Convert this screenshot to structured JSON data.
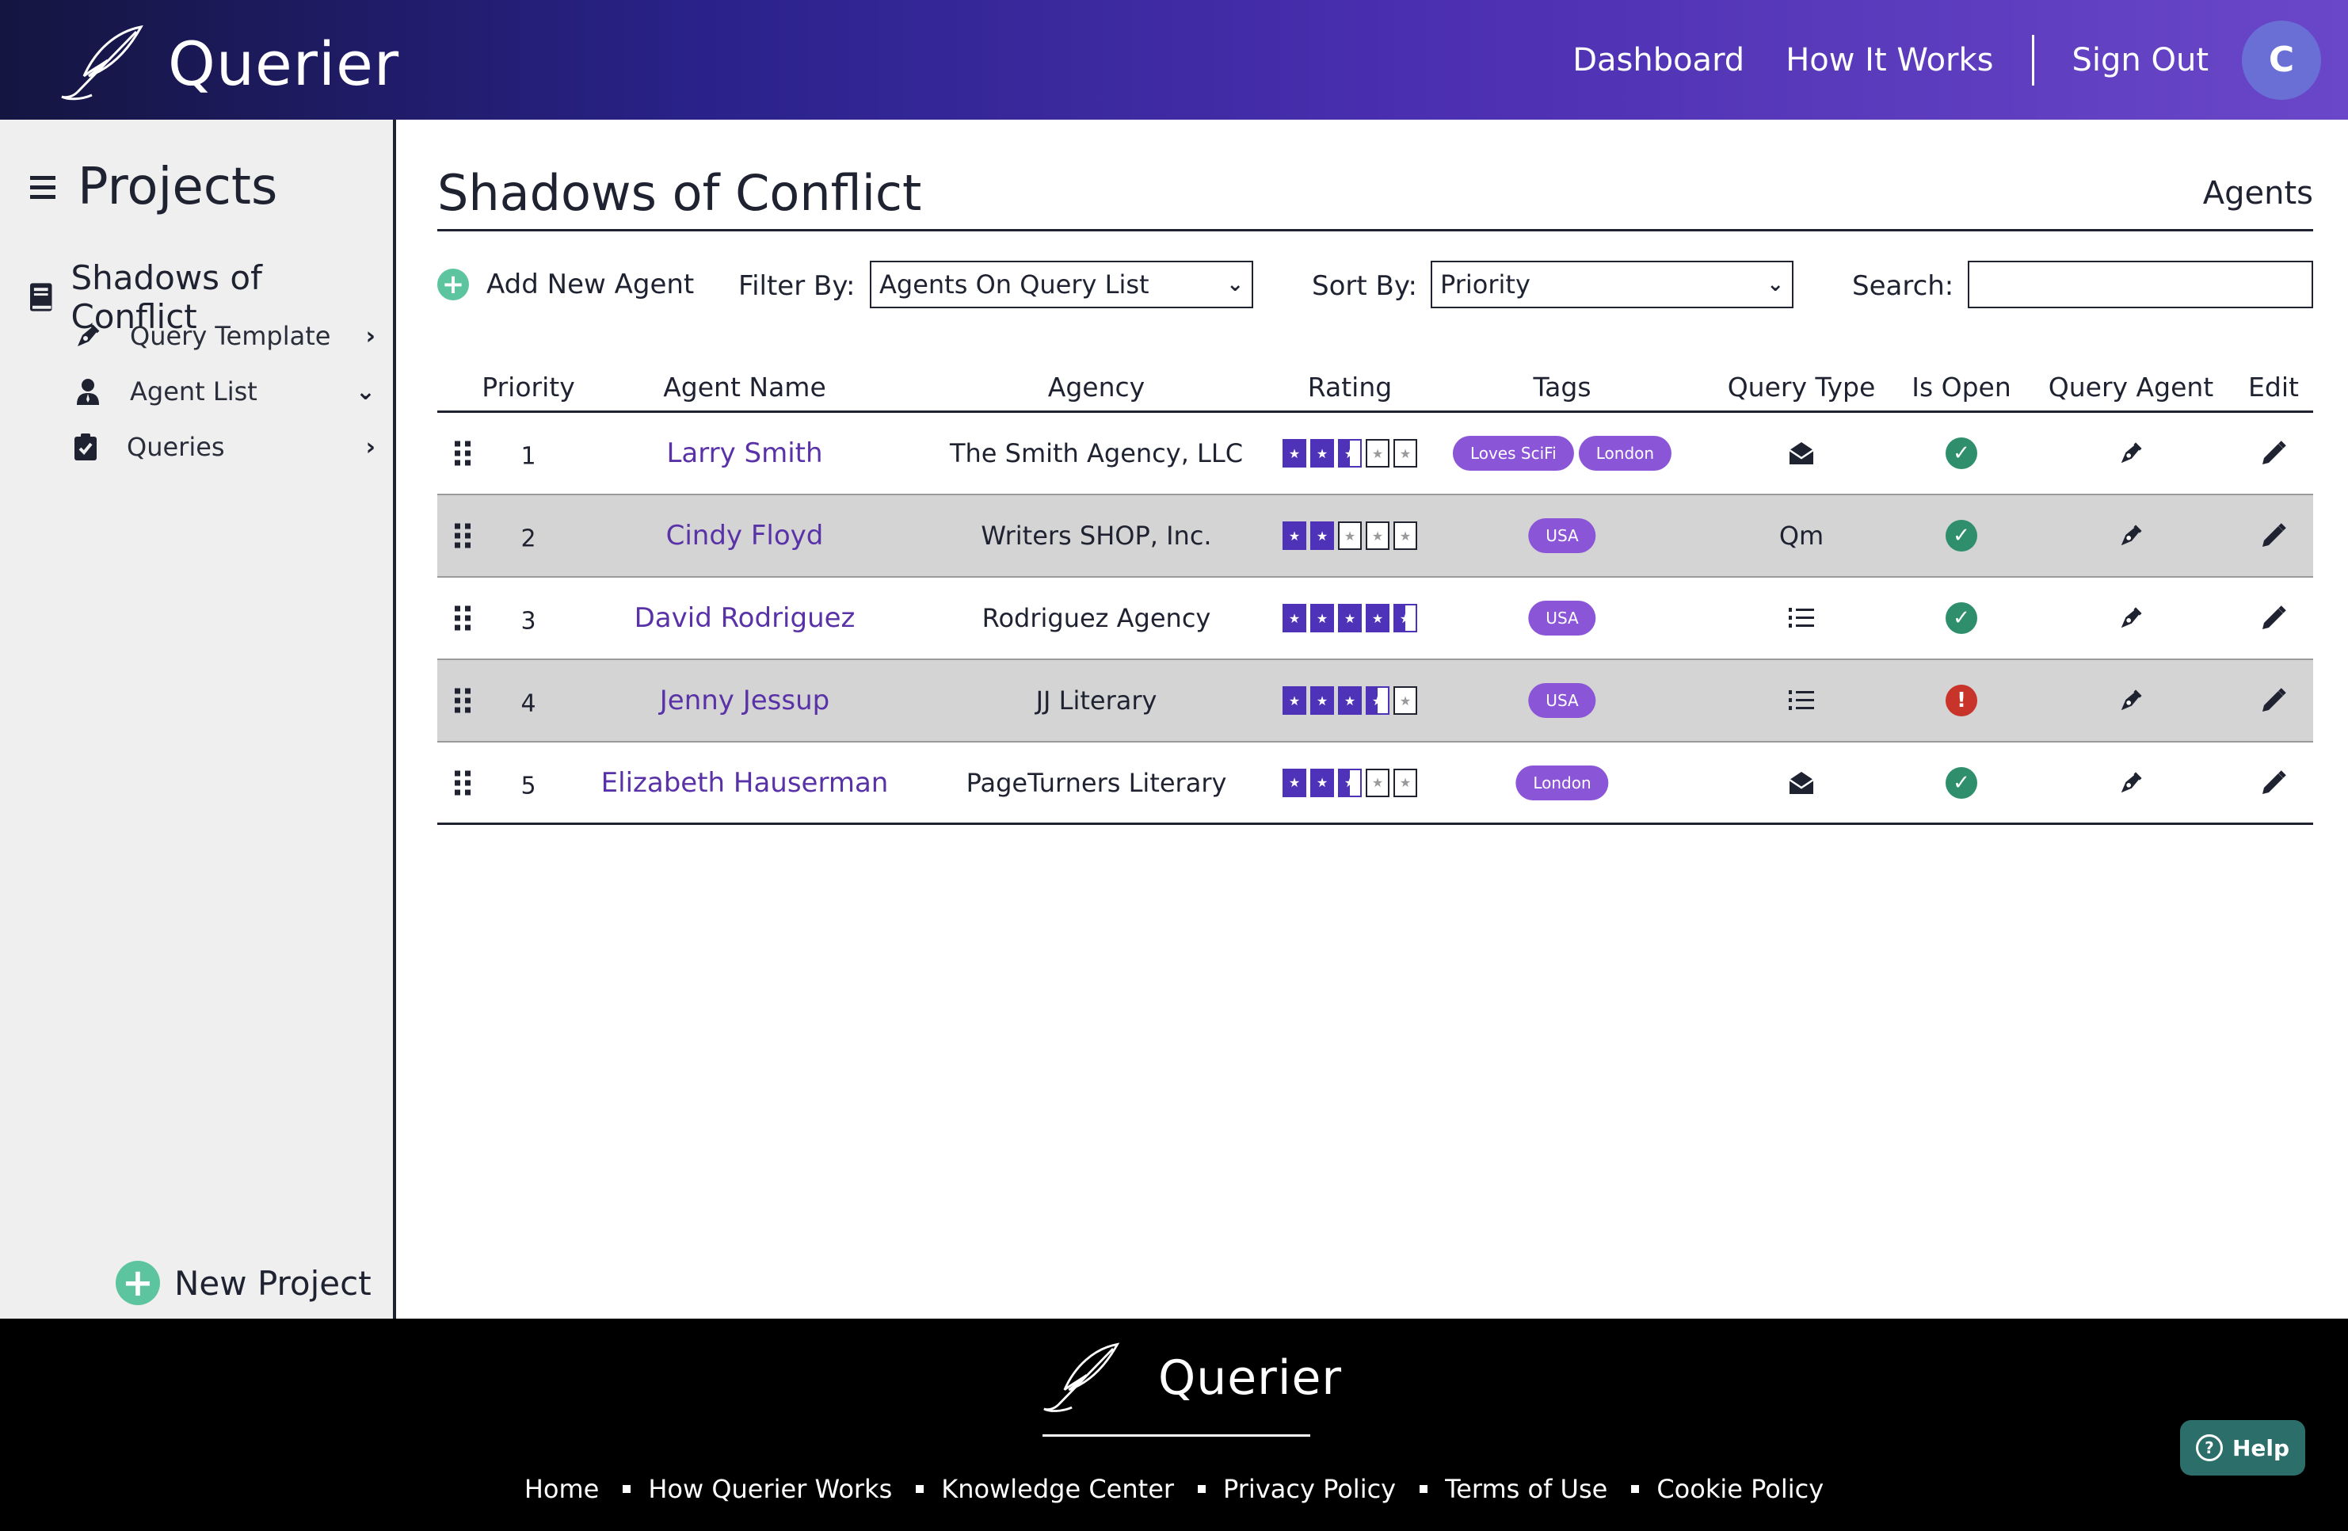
{
  "app": {
    "name": "Querier",
    "colors": {
      "brand_dark": "#141540",
      "brand_purple": "#4e32b8",
      "accent_green": "#5cc5a0",
      "link_purple": "#5a32a8"
    }
  },
  "header": {
    "nav": {
      "dashboard": "Dashboard",
      "how_it_works": "How It Works",
      "sign_out": "Sign Out"
    },
    "avatar_initial": "C"
  },
  "sidebar": {
    "title": "Projects",
    "project": "Shadows of Conflict",
    "items": [
      {
        "label": "Query Template",
        "icon": "pen-nib-icon",
        "chevron": "›"
      },
      {
        "label": "Agent List",
        "icon": "user-tie-icon",
        "chevron": "⌄"
      },
      {
        "label": "Queries",
        "icon": "clipboard-check-icon",
        "chevron": "›"
      }
    ],
    "new_project": "New Project"
  },
  "main": {
    "title": "Shadows of Conflict",
    "crumb": "Agents",
    "toolbar": {
      "add_agent": "Add New Agent",
      "filter_label": "Filter By:",
      "filter_value": "Agents On Query List",
      "sort_label": "Sort By:",
      "sort_value": "Priority",
      "search_label": "Search:",
      "search_value": ""
    },
    "columns": [
      "Priority",
      "Agent Name",
      "Agency",
      "Rating",
      "Tags",
      "Query Type",
      "Is Open",
      "Query Agent",
      "Edit"
    ],
    "rows": [
      {
        "priority": "1",
        "name": "Larry Smith",
        "agency": "The Smith Agency, LLC",
        "rating": 2.5,
        "tags": [
          "Loves SciFi",
          "London"
        ],
        "query_type": "envelope-open-icon",
        "query_type_text": "",
        "is_open": true
      },
      {
        "priority": "2",
        "name": "Cindy Floyd",
        "agency": "Writers SHOP, Inc.",
        "rating": 2,
        "tags": [
          "USA"
        ],
        "query_type": "",
        "query_type_text": "Qm",
        "is_open": true
      },
      {
        "priority": "3",
        "name": "David Rodriguez",
        "agency": "Rodriguez Agency",
        "rating": 4.5,
        "tags": [
          "USA"
        ],
        "query_type": "list-ol-icon",
        "query_type_text": "",
        "is_open": true
      },
      {
        "priority": "4",
        "name": "Jenny Jessup",
        "agency": "JJ Literary",
        "rating": 3.5,
        "tags": [
          "USA"
        ],
        "query_type": "list-ol-icon",
        "query_type_text": "",
        "is_open": false
      },
      {
        "priority": "5",
        "name": "Elizabeth Hauserman",
        "agency": "PageTurners Literary",
        "rating": 2.5,
        "tags": [
          "London"
        ],
        "query_type": "envelope-open-icon",
        "query_type_text": "",
        "is_open": true
      }
    ]
  },
  "footer": {
    "links": [
      "Home",
      "How Querier Works",
      "Knowledge Center",
      "Privacy Policy",
      "Terms of Use",
      "Cookie Policy"
    ],
    "help": "Help"
  }
}
